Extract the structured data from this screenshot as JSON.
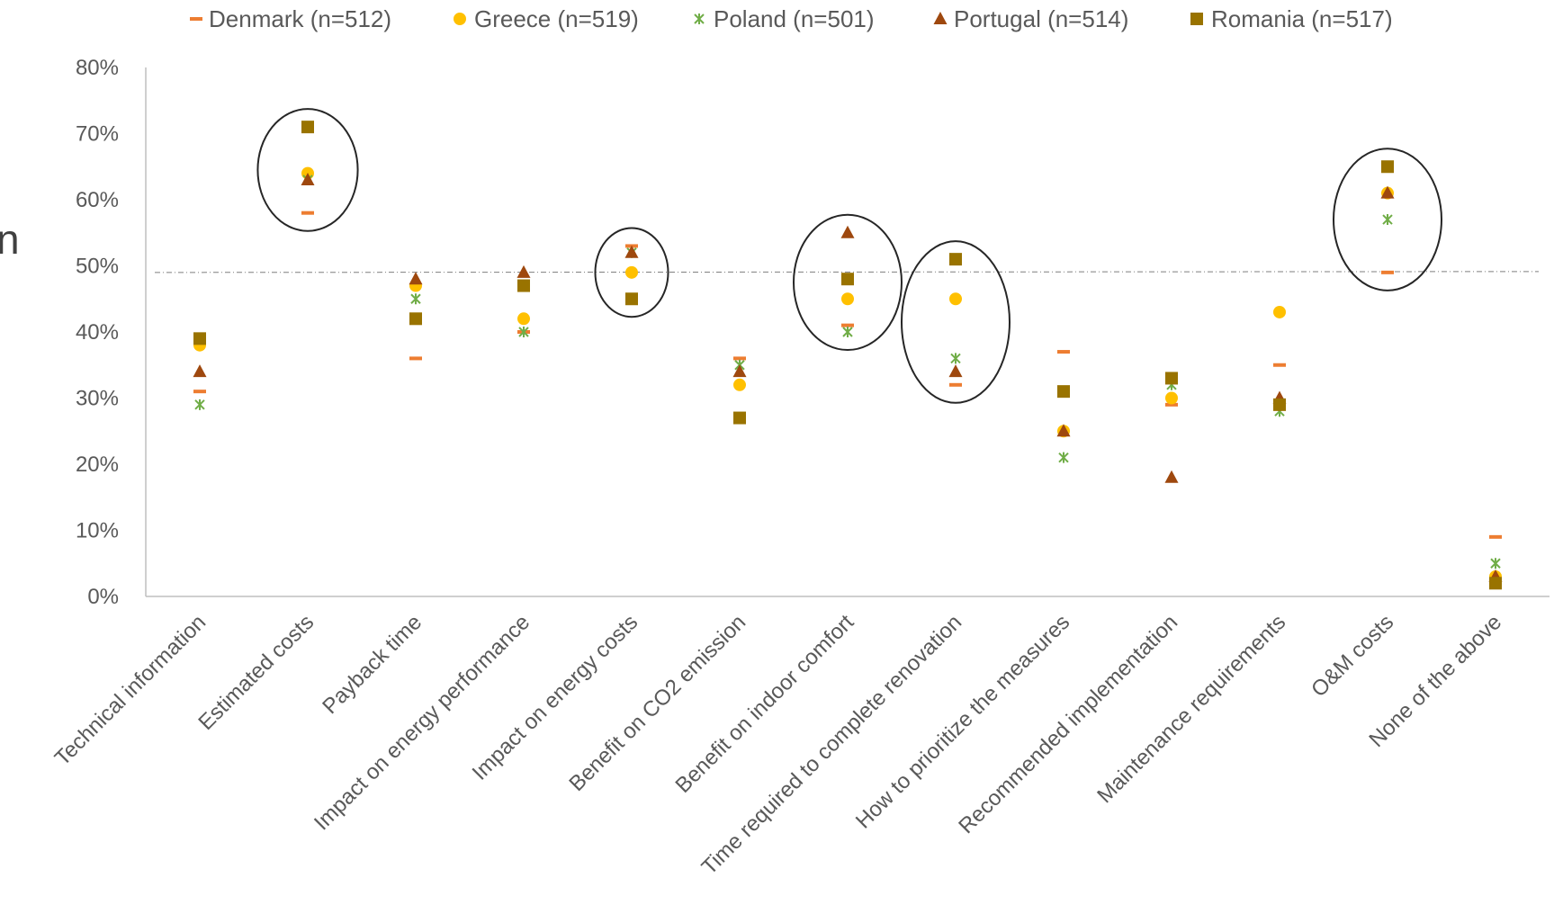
{
  "side_text": "n",
  "chart_data": {
    "type": "scatter",
    "title": "",
    "xlabel": "",
    "ylabel": "",
    "ylim": [
      0,
      80
    ],
    "y_ticks": [
      "0%",
      "10%",
      "20%",
      "30%",
      "40%",
      "50%",
      "60%",
      "70%",
      "80%"
    ],
    "y_unit": "%",
    "grid": false,
    "legend_position": "top",
    "reference_line": 49,
    "categories": [
      "Technical information",
      "Estimated costs",
      "Payback time",
      "Impact on energy performance",
      "Impact on energy costs",
      "Benefit on CO2 emission",
      "Benefit on indoor comfort",
      "Time required to complete renovation",
      "How to prioritize the measures",
      "Recommended implementation",
      "Maintenance requirements",
      "O&M costs",
      "None of the above"
    ],
    "series": [
      {
        "name": "Denmark (n=512)",
        "marker": "dash",
        "color": "#ED7D31",
        "values": [
          31,
          58,
          36,
          40,
          53,
          36,
          41,
          32,
          37,
          29,
          35,
          49,
          9
        ]
      },
      {
        "name": "Greece (n=519)",
        "marker": "circle",
        "color": "#FFC000",
        "values": [
          38,
          64,
          47,
          42,
          49,
          32,
          45,
          45,
          25,
          30,
          43,
          61,
          3
        ]
      },
      {
        "name": "Poland (n=501)",
        "marker": "star",
        "color": "#70AD47",
        "values": [
          29,
          63,
          45,
          40,
          52,
          35,
          40,
          36,
          21,
          32,
          28,
          57,
          5
        ]
      },
      {
        "name": "Portugal (n=514)",
        "marker": "triangle",
        "color": "#9E480E",
        "values": [
          34,
          63,
          48,
          49,
          52,
          34,
          55,
          34,
          25,
          18,
          30,
          61,
          3
        ]
      },
      {
        "name": "Romania (n=517)",
        "marker": "square",
        "color": "#997300",
        "values": [
          39,
          71,
          42,
          47,
          45,
          27,
          48,
          51,
          31,
          33,
          29,
          65,
          2
        ]
      }
    ],
    "highlighted_categories": [
      1,
      4,
      6,
      7,
      11
    ]
  }
}
